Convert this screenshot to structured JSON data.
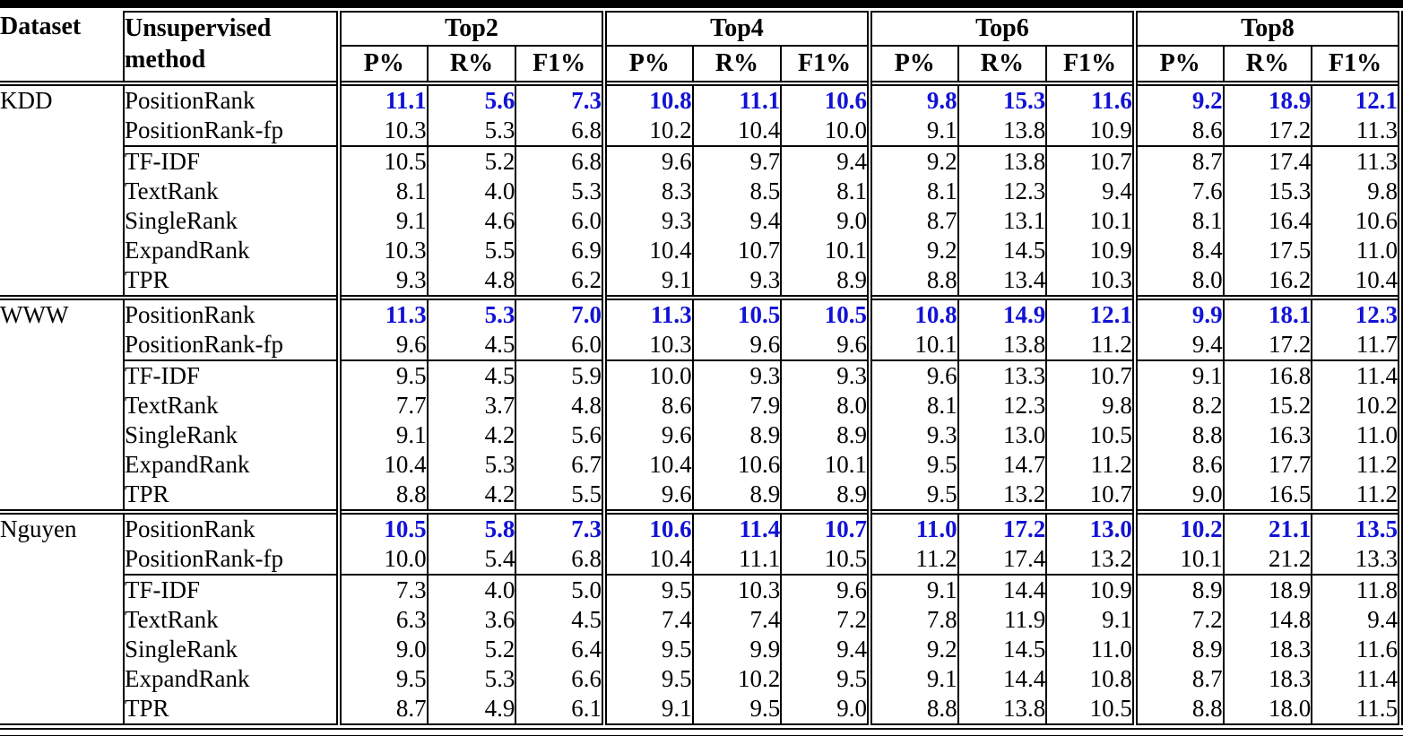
{
  "style": {
    "highlight_color": "#1212d6"
  },
  "header": {
    "dataset": "Dataset",
    "method": "Unsupervised method",
    "groups": [
      "Top2",
      "Top4",
      "Top6",
      "Top8"
    ],
    "metrics": [
      "P%",
      "R%",
      "F1%"
    ]
  },
  "sections": [
    {
      "dataset": "KDD",
      "rows": [
        {
          "method": "PositionRank",
          "highlight": true,
          "values": [
            "11.1",
            "5.6",
            "7.3",
            "10.8",
            "11.1",
            "10.6",
            "9.8",
            "15.3",
            "11.6",
            "9.2",
            "18.9",
            "12.1"
          ]
        },
        {
          "method": "PositionRank-fp",
          "highlight": false,
          "values": [
            "10.3",
            "5.3",
            "6.8",
            "10.2",
            "10.4",
            "10.0",
            "9.1",
            "13.8",
            "10.9",
            "8.6",
            "17.2",
            "11.3"
          ]
        },
        {
          "method": "TF-IDF",
          "highlight": false,
          "baseline_start": true,
          "values": [
            "10.5",
            "5.2",
            "6.8",
            "9.6",
            "9.7",
            "9.4",
            "9.2",
            "13.8",
            "10.7",
            "8.7",
            "17.4",
            "11.3"
          ]
        },
        {
          "method": "TextRank",
          "highlight": false,
          "values": [
            "8.1",
            "4.0",
            "5.3",
            "8.3",
            "8.5",
            "8.1",
            "8.1",
            "12.3",
            "9.4",
            "7.6",
            "15.3",
            "9.8"
          ]
        },
        {
          "method": "SingleRank",
          "highlight": false,
          "values": [
            "9.1",
            "4.6",
            "6.0",
            "9.3",
            "9.4",
            "9.0",
            "8.7",
            "13.1",
            "10.1",
            "8.1",
            "16.4",
            "10.6"
          ]
        },
        {
          "method": "ExpandRank",
          "highlight": false,
          "values": [
            "10.3",
            "5.5",
            "6.9",
            "10.4",
            "10.7",
            "10.1",
            "9.2",
            "14.5",
            "10.9",
            "8.4",
            "17.5",
            "11.0"
          ]
        },
        {
          "method": "TPR",
          "highlight": false,
          "values": [
            "9.3",
            "4.8",
            "6.2",
            "9.1",
            "9.3",
            "8.9",
            "8.8",
            "13.4",
            "10.3",
            "8.0",
            "16.2",
            "10.4"
          ]
        }
      ]
    },
    {
      "dataset": "WWW",
      "rows": [
        {
          "method": "PositionRank",
          "highlight": true,
          "values": [
            "11.3",
            "5.3",
            "7.0",
            "11.3",
            "10.5",
            "10.5",
            "10.8",
            "14.9",
            "12.1",
            "9.9",
            "18.1",
            "12.3"
          ]
        },
        {
          "method": "PositionRank-fp",
          "highlight": false,
          "values": [
            "9.6",
            "4.5",
            "6.0",
            "10.3",
            "9.6",
            "9.6",
            "10.1",
            "13.8",
            "11.2",
            "9.4",
            "17.2",
            "11.7"
          ]
        },
        {
          "method": "TF-IDF",
          "highlight": false,
          "baseline_start": true,
          "values": [
            "9.5",
            "4.5",
            "5.9",
            "10.0",
            "9.3",
            "9.3",
            "9.6",
            "13.3",
            "10.7",
            "9.1",
            "16.8",
            "11.4"
          ]
        },
        {
          "method": "TextRank",
          "highlight": false,
          "values": [
            "7.7",
            "3.7",
            "4.8",
            "8.6",
            "7.9",
            "8.0",
            "8.1",
            "12.3",
            "9.8",
            "8.2",
            "15.2",
            "10.2"
          ]
        },
        {
          "method": "SingleRank",
          "highlight": false,
          "values": [
            "9.1",
            "4.2",
            "5.6",
            "9.6",
            "8.9",
            "8.9",
            "9.3",
            "13.0",
            "10.5",
            "8.8",
            "16.3",
            "11.0"
          ]
        },
        {
          "method": "ExpandRank",
          "highlight": false,
          "values": [
            "10.4",
            "5.3",
            "6.7",
            "10.4",
            "10.6",
            "10.1",
            "9.5",
            "14.7",
            "11.2",
            "8.6",
            "17.7",
            "11.2"
          ]
        },
        {
          "method": "TPR",
          "highlight": false,
          "values": [
            "8.8",
            "4.2",
            "5.5",
            "9.6",
            "8.9",
            "8.9",
            "9.5",
            "13.2",
            "10.7",
            "9.0",
            "16.5",
            "11.2"
          ]
        }
      ]
    },
    {
      "dataset": "Nguyen",
      "rows": [
        {
          "method": "PositionRank",
          "highlight": true,
          "values": [
            "10.5",
            "5.8",
            "7.3",
            "10.6",
            "11.4",
            "10.7",
            "11.0",
            "17.2",
            "13.0",
            "10.2",
            "21.1",
            "13.5"
          ]
        },
        {
          "method": "PositionRank-fp",
          "highlight": false,
          "values": [
            "10.0",
            "5.4",
            "6.8",
            "10.4",
            "11.1",
            "10.5",
            "11.2",
            "17.4",
            "13.2",
            "10.1",
            "21.2",
            "13.3"
          ]
        },
        {
          "method": "TF-IDF",
          "highlight": false,
          "baseline_start": true,
          "values": [
            "7.3",
            "4.0",
            "5.0",
            "9.5",
            "10.3",
            "9.6",
            "9.1",
            "14.4",
            "10.9",
            "8.9",
            "18.9",
            "11.8"
          ]
        },
        {
          "method": "TextRank",
          "highlight": false,
          "values": [
            "6.3",
            "3.6",
            "4.5",
            "7.4",
            "7.4",
            "7.2",
            "7.8",
            "11.9",
            "9.1",
            "7.2",
            "14.8",
            "9.4"
          ]
        },
        {
          "method": "SingleRank",
          "highlight": false,
          "values": [
            "9.0",
            "5.2",
            "6.4",
            "9.5",
            "9.9",
            "9.4",
            "9.2",
            "14.5",
            "11.0",
            "8.9",
            "18.3",
            "11.6"
          ]
        },
        {
          "method": "ExpandRank",
          "highlight": false,
          "values": [
            "9.5",
            "5.3",
            "6.6",
            "9.5",
            "10.2",
            "9.5",
            "9.1",
            "14.4",
            "10.8",
            "8.7",
            "18.3",
            "11.4"
          ]
        },
        {
          "method": "TPR",
          "highlight": false,
          "values": [
            "8.7",
            "4.9",
            "6.1",
            "9.1",
            "9.5",
            "9.0",
            "8.8",
            "13.8",
            "10.5",
            "8.8",
            "18.0",
            "11.5"
          ]
        }
      ]
    }
  ]
}
